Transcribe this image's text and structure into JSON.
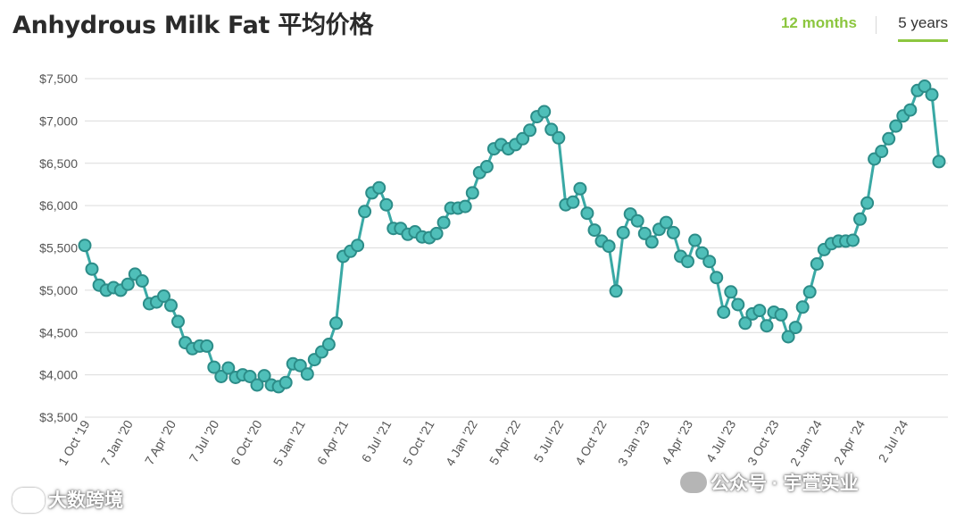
{
  "title": "Anhydrous Milk Fat 平均价格",
  "tabs": [
    {
      "label": "12 months",
      "active": false
    },
    {
      "label": "5 years",
      "active": true
    }
  ],
  "colors": {
    "line": "#3aa9a5",
    "marker": "#4fbfb9",
    "marker_border": "#2c8c88",
    "accent": "#8cc63f",
    "grid": "#dcdcdc"
  },
  "watermarks": {
    "left": "大数跨境",
    "right": "公众号 · 宇萱实业"
  },
  "chart_data": {
    "type": "line",
    "title": "Anhydrous Milk Fat 平均价格",
    "xlabel": "",
    "ylabel": "",
    "ylim": [
      3500,
      7500
    ],
    "y_ticks": [
      3500,
      4000,
      4500,
      5000,
      5500,
      6000,
      6500,
      7000,
      7500
    ],
    "y_tick_labels": [
      "$3,500",
      "$4,000",
      "$4,500",
      "$5,000",
      "$5,500",
      "$6,000",
      "$6,500",
      "$7,000",
      "$7,500"
    ],
    "x_tick_labels": [
      "1 Oct '19",
      "7 Jan '20",
      "7 Apr '20",
      "7 Jul '20",
      "6 Oct '20",
      "5 Jan '21",
      "6 Apr '21",
      "6 Jul '21",
      "5 Oct '21",
      "4 Jan '22",
      "5 Apr '22",
      "5 Jul '22",
      "4 Oct '22",
      "3 Jan '23",
      "4 Apr '23",
      "4 Jul '23",
      "3 Oct '23",
      "2 Jan '24",
      "2 Apr '24",
      "2 Jul '24"
    ],
    "x_tick_index": [
      0,
      6,
      12,
      18,
      24,
      30,
      36,
      42,
      48,
      54,
      60,
      66,
      72,
      78,
      84,
      90,
      96,
      102,
      108,
      114
    ],
    "grid": true,
    "legend": "none",
    "series": [
      {
        "values": [
          5530,
          5250,
          5060,
          5000,
          5030,
          5000,
          5070,
          5190,
          5110,
          4840,
          4860,
          4930,
          4820,
          4630,
          4380,
          4310,
          4340,
          4340,
          4090,
          3980,
          4080,
          3970,
          4000,
          3980,
          3880,
          3990,
          3880,
          3860,
          3910,
          4130,
          4110,
          4010,
          4180,
          4270,
          4360,
          4610,
          5400,
          5460,
          5530,
          5930,
          6150,
          6210,
          6010,
          5730,
          5730,
          5660,
          5690,
          5630,
          5620,
          5670,
          5800,
          5970,
          5970,
          5990,
          6150,
          6390,
          6460,
          6670,
          6720,
          6670,
          6720,
          6790,
          6890,
          7050,
          7110,
          6900,
          6800,
          6010,
          6040,
          6200,
          5910,
          5710,
          5580,
          5520,
          4990,
          5680,
          5900,
          5820,
          5670,
          5570,
          5720,
          5800,
          5680,
          5400,
          5340,
          5590,
          5440,
          5340,
          5150,
          4740,
          4980,
          4830,
          4610,
          4720,
          4760,
          4580,
          4740,
          4710,
          4450,
          4560,
          4800,
          4980,
          5310,
          5480,
          5550,
          5580,
          5580,
          5590,
          5840,
          6030,
          6550,
          6640,
          6790,
          6940,
          7060,
          7130,
          7360,
          7410,
          7310,
          6520
        ]
      }
    ]
  }
}
